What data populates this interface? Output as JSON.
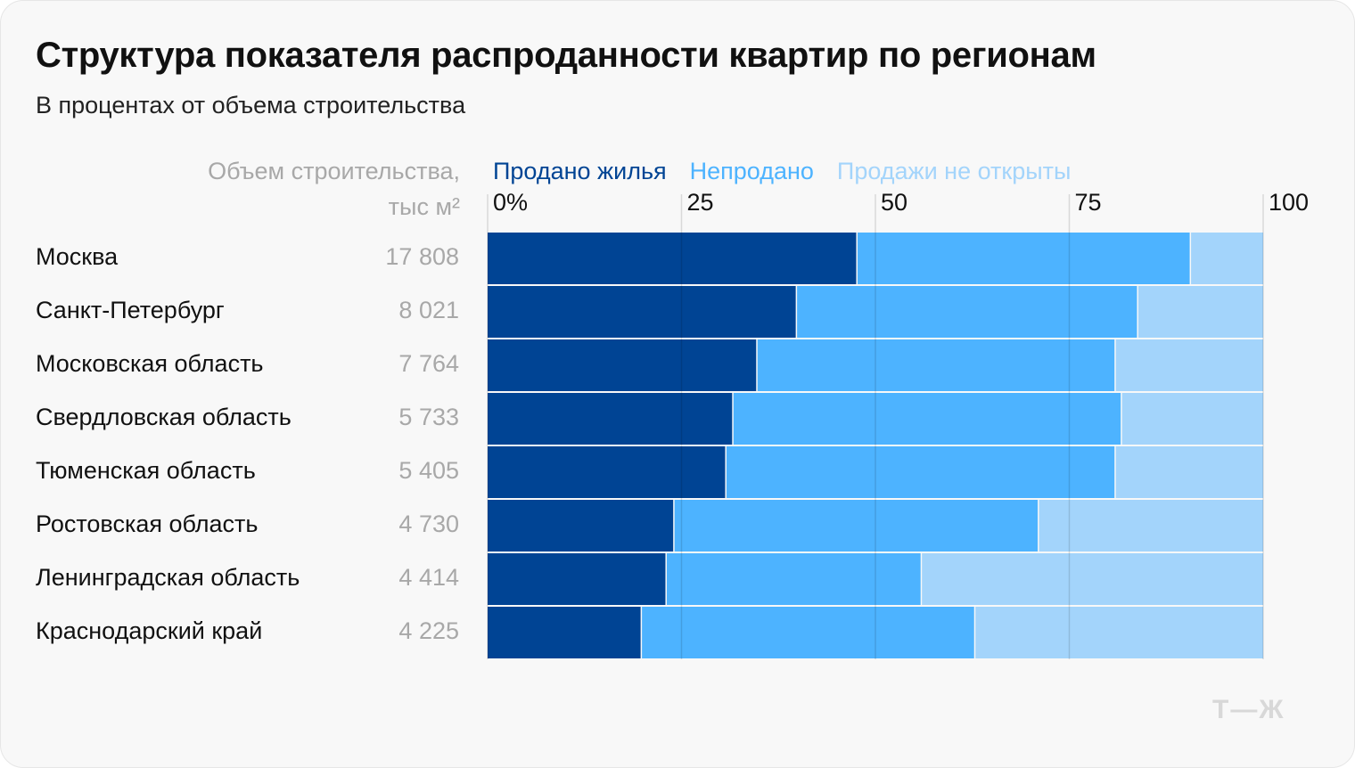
{
  "chart_data": {
    "type": "bar",
    "orientation": "horizontal",
    "stacked": true,
    "title": "Структура показателя распроданности квартир по регионам",
    "subtitle": "В процентах от объема строительства",
    "column_header": [
      "Объем строительства,",
      "тыс м²"
    ],
    "categories": [
      "Москва",
      "Санкт-Петербург",
      "Московская область",
      "Свердловская область",
      "Тюменская область",
      "Ростовская область",
      "Ленинградская область",
      "Краснодарский край"
    ],
    "volumes": [
      "17 808",
      "8 021",
      "7 764",
      "5 733",
      "5 405",
      "4 730",
      "4 414",
      "4 225"
    ],
    "series": [
      {
        "name": "Продано жилья",
        "color": "#004494",
        "values": [
          47.7,
          39.9,
          34.8,
          31.7,
          30.8,
          24.1,
          23.1,
          19.9
        ]
      },
      {
        "name": "Непродано",
        "color": "#4db3ff",
        "values": [
          43.0,
          44.0,
          46.2,
          50.1,
          50.2,
          47.0,
          32.9,
          43.0
        ]
      },
      {
        "name": "Продажи не открыты",
        "color": "#a3d4fb",
        "values": [
          9.3,
          16.1,
          19.0,
          18.2,
          19.0,
          28.9,
          44.0,
          37.1
        ]
      }
    ],
    "xticks": [
      "0%",
      "25",
      "50",
      "75",
      "100"
    ],
    "xlim": [
      0,
      100
    ],
    "grid": true,
    "legend": "top"
  },
  "logo": "т—ж"
}
